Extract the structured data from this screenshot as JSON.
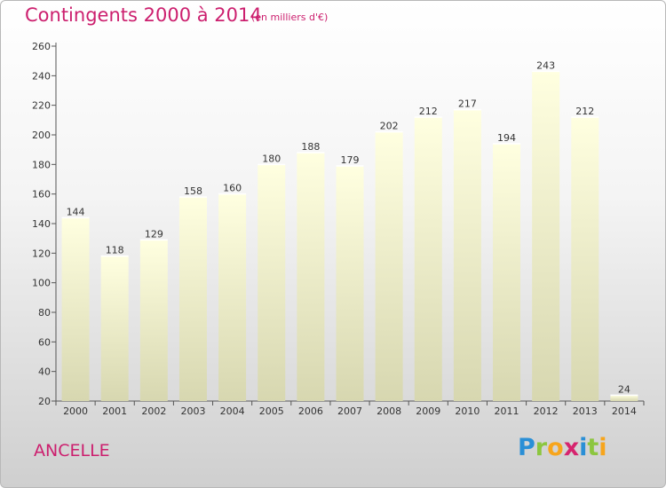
{
  "title": "Contingents 2000 à 2014",
  "subtitle": "(en milliers d'€)",
  "place": "ANCELLE",
  "brand": {
    "letters": [
      {
        "ch": "P",
        "color": "#2a8fd6"
      },
      {
        "ch": "r",
        "color": "#8cc63f"
      },
      {
        "ch": "o",
        "color": "#f7a51c"
      },
      {
        "ch": "x",
        "color": "#d6246e"
      },
      {
        "ch": "i",
        "color": "#2a8fd6"
      },
      {
        "ch": "t",
        "color": "#8cc63f"
      },
      {
        "ch": "i",
        "color": "#f7a51c"
      }
    ]
  },
  "colors": {
    "bar_top": "#ffffe0",
    "bar_bottom": "#d7d7b0",
    "accent": "#cc1f6e",
    "axis": "#555555"
  },
  "chart_data": {
    "type": "bar",
    "title": "Contingents 2000 à 2014",
    "subtitle": "(en milliers d'€)",
    "xlabel": "",
    "ylabel": "",
    "categories": [
      "2000",
      "2001",
      "2002",
      "2003",
      "2004",
      "2005",
      "2006",
      "2007",
      "2008",
      "2009",
      "2010",
      "2011",
      "2012",
      "2013",
      "2014"
    ],
    "values": [
      144,
      118,
      129,
      158,
      160,
      180,
      188,
      179,
      202,
      212,
      217,
      194,
      243,
      212,
      24
    ],
    "ylim": [
      20,
      260
    ],
    "yticks": [
      20,
      40,
      60,
      80,
      100,
      120,
      140,
      160,
      180,
      200,
      220,
      240,
      260
    ],
    "grid": false,
    "legend": "none"
  }
}
